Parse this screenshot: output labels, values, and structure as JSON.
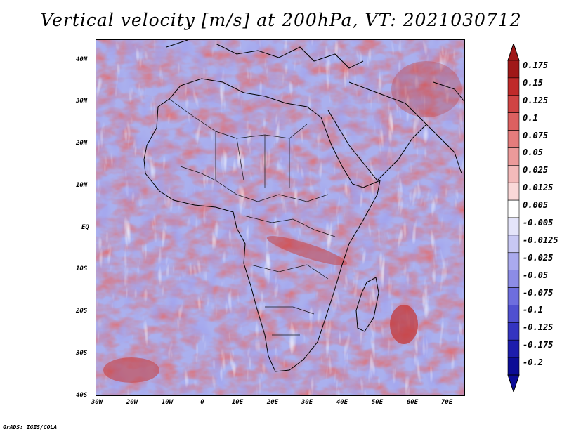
{
  "title": "Vertical velocity [m/s] at 200hPa, VT: 2021030712",
  "credit": "GrADS: IGES/COLA",
  "map": {
    "lat_ticks": [
      "40N",
      "30N",
      "20N",
      "10N",
      "EQ",
      "10S",
      "20S",
      "30S",
      "40S"
    ],
    "lon_ticks": [
      "30W",
      "20W",
      "10W",
      "0",
      "10E",
      "20E",
      "30E",
      "40E",
      "50E",
      "60E",
      "70E"
    ]
  },
  "colorbar": {
    "labels": [
      "0.175",
      "0.15",
      "0.125",
      "0.1",
      "0.075",
      "0.05",
      "0.025",
      "0.0125",
      "0.005",
      "-0.005",
      "-0.0125",
      "-0.025",
      "-0.05",
      "-0.075",
      "-0.1",
      "-0.125",
      "-0.175",
      "-0.2"
    ],
    "colors": [
      "#a01818",
      "#c02a2a",
      "#d04444",
      "#dc6060",
      "#e47c7c",
      "#ec9a9a",
      "#f4baba",
      "#fad8d8",
      "#ffffff",
      "#e4e4fa",
      "#c8c8f4",
      "#aaaaee",
      "#8c8ce6",
      "#6e6ede",
      "#5050d0",
      "#3434c0",
      "#1c1cac",
      "#0c0c96"
    ]
  },
  "colors": {
    "background_blue": "#aab0ee",
    "background_red": "#ef9c9c"
  }
}
